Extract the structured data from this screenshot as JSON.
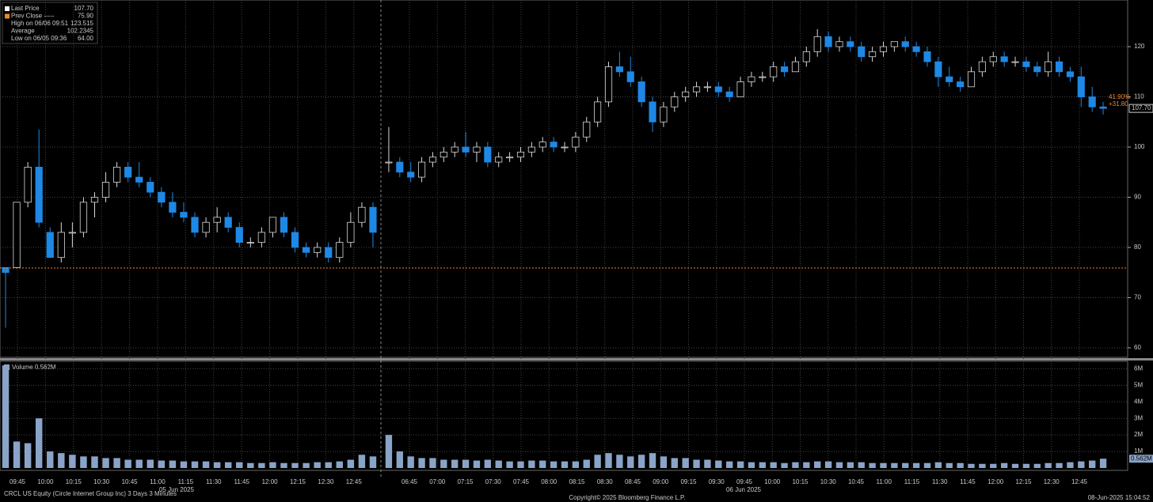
{
  "chart_data": {
    "type": "candlestick",
    "legend": [
      {
        "label": "Last Price",
        "value": "107.70"
      },
      {
        "label": "Prev Close -----",
        "value": "75.90"
      },
      {
        "label": "High on 06/06 09:51",
        "value": "123.515"
      },
      {
        "label": "Average",
        "value": "102.2345"
      },
      {
        "label": "Low on 06/05 09:36",
        "value": "64.00"
      }
    ],
    "prev_close": 75.9,
    "right_labels": {
      "pct": "41.90%",
      "change": "+31.80",
      "last": "107.70"
    },
    "ylim": [
      58.1,
      129.3
    ],
    "yticks": [
      60,
      70,
      80,
      90,
      100,
      110,
      120
    ],
    "volume": {
      "legend": "Volume 0.562M",
      "last_label": "0.562M",
      "ylim": [
        0,
        6.4
      ],
      "yticks": [
        {
          "value": 1,
          "label": "1M"
        },
        {
          "value": 2,
          "label": "2M"
        },
        {
          "value": 3,
          "label": "3M"
        },
        {
          "value": 4,
          "label": "4M"
        },
        {
          "value": 5,
          "label": "5M"
        },
        {
          "value": 6,
          "label": "6M"
        }
      ]
    },
    "days": [
      {
        "label": "05 Jun 2025",
        "xticks": [
          "09:45",
          "10:00",
          "10:15",
          "10:30",
          "10:45",
          "11:00",
          "11:15",
          "11:30",
          "11:45",
          "12:00",
          "12:15",
          "12:30",
          "12:45"
        ],
        "candles": [
          [
            76,
            76,
            64,
            75
          ],
          [
            76,
            89,
            76,
            89
          ],
          [
            89,
            97,
            88,
            96
          ],
          [
            96,
            103.5,
            84,
            85
          ],
          [
            83,
            84,
            78,
            78
          ],
          [
            78,
            85,
            77,
            83
          ],
          [
            83,
            85,
            80,
            83
          ],
          [
            83,
            90,
            82,
            89
          ],
          [
            89,
            91,
            86,
            90
          ],
          [
            90,
            95,
            89,
            93
          ],
          [
            93,
            97,
            92,
            96
          ],
          [
            96,
            97,
            93,
            94
          ],
          [
            94,
            97,
            92,
            93
          ],
          [
            93,
            94,
            90,
            91
          ],
          [
            91,
            92,
            88,
            89
          ],
          [
            89,
            91,
            86,
            87
          ],
          [
            87,
            89,
            85,
            86
          ],
          [
            86,
            87,
            82,
            83
          ],
          [
            83,
            86,
            82,
            85
          ],
          [
            85,
            88,
            83,
            86
          ],
          [
            86,
            87,
            83,
            84
          ],
          [
            84,
            85,
            80,
            81
          ],
          [
            81,
            82,
            80,
            81
          ],
          [
            81,
            84,
            80,
            83
          ],
          [
            83,
            86,
            82,
            86
          ],
          [
            86,
            87,
            82,
            83
          ],
          [
            83,
            84,
            79,
            80
          ],
          [
            80,
            81,
            78,
            79
          ],
          [
            79,
            81,
            78,
            80
          ],
          [
            80,
            81,
            77,
            78
          ],
          [
            78,
            82,
            77,
            81
          ],
          [
            81,
            87,
            80,
            85
          ],
          [
            85,
            89,
            84,
            88
          ],
          [
            88,
            89,
            80,
            83
          ]
        ],
        "volume": [
          6.2,
          1.6,
          1.5,
          3.0,
          1.0,
          0.9,
          0.8,
          0.7,
          0.7,
          0.6,
          0.6,
          0.5,
          0.5,
          0.5,
          0.45,
          0.45,
          0.4,
          0.4,
          0.4,
          0.35,
          0.35,
          0.35,
          0.3,
          0.3,
          0.35,
          0.3,
          0.3,
          0.3,
          0.35,
          0.35,
          0.4,
          0.5,
          0.8,
          0.7
        ]
      },
      {
        "label": "06 Jun 2025",
        "xticks": [
          "06:45",
          "07:00",
          "07:15",
          "07:30",
          "07:45",
          "08:00",
          "08:15",
          "08:30",
          "08:45",
          "09:00",
          "09:15",
          "09:30",
          "09:45",
          "10:00",
          "10:15",
          "10:30",
          "10:45",
          "11:00",
          "11:15",
          "11:30",
          "11:45",
          "12:00",
          "12:15",
          "12:30",
          "12:45"
        ],
        "candles": [
          [
            97,
            104,
            95,
            97
          ],
          [
            97,
            98,
            94,
            95
          ],
          [
            95,
            97,
            93,
            94
          ],
          [
            94,
            98,
            93,
            97
          ],
          [
            97,
            99,
            96,
            98
          ],
          [
            98,
            100,
            97,
            99
          ],
          [
            99,
            101,
            98,
            100
          ],
          [
            100,
            103,
            98,
            99
          ],
          [
            99,
            101,
            97,
            100
          ],
          [
            100,
            101,
            96,
            97
          ],
          [
            97,
            99,
            96,
            98
          ],
          [
            98,
            99,
            97,
            98
          ],
          [
            98,
            100,
            97,
            99
          ],
          [
            99,
            101,
            98,
            100
          ],
          [
            100,
            102,
            99,
            101
          ],
          [
            101,
            102,
            99,
            100
          ],
          [
            100,
            101,
            99,
            100
          ],
          [
            100,
            103,
            99,
            102
          ],
          [
            102,
            106,
            101,
            105
          ],
          [
            105,
            110,
            104,
            109
          ],
          [
            109,
            117,
            108,
            116
          ],
          [
            116,
            119,
            114,
            115
          ],
          [
            115,
            118,
            112,
            113
          ],
          [
            113,
            114,
            108,
            109
          ],
          [
            109,
            110,
            103,
            105
          ],
          [
            105,
            109,
            104,
            108
          ],
          [
            108,
            111,
            107,
            110
          ],
          [
            110,
            112,
            109,
            111
          ],
          [
            111,
            113,
            110,
            112
          ],
          [
            112,
            113,
            111,
            112
          ],
          [
            112,
            113,
            110,
            111
          ],
          [
            111,
            112,
            109,
            110
          ],
          [
            110,
            114,
            110,
            113
          ],
          [
            113,
            115,
            112,
            114
          ],
          [
            114,
            115,
            113,
            114
          ],
          [
            114,
            117,
            113,
            116
          ],
          [
            116,
            117,
            114,
            115
          ],
          [
            115,
            118,
            115,
            117
          ],
          [
            117,
            120,
            116,
            119
          ],
          [
            119,
            123.5,
            118,
            122
          ],
          [
            122,
            123,
            119,
            120
          ],
          [
            120,
            122,
            119,
            121
          ],
          [
            121,
            122,
            119,
            120
          ],
          [
            120,
            121,
            117,
            118
          ],
          [
            118,
            120,
            117,
            119
          ],
          [
            119,
            121,
            118,
            120
          ],
          [
            120,
            121,
            119,
            121
          ],
          [
            121,
            122,
            119,
            120
          ],
          [
            120,
            121,
            118,
            119
          ],
          [
            119,
            120,
            116,
            117
          ],
          [
            117,
            118,
            112,
            114
          ],
          [
            114,
            116,
            112,
            113
          ],
          [
            113,
            114,
            111,
            112
          ],
          [
            112,
            116,
            112,
            115
          ],
          [
            115,
            118,
            114,
            117
          ],
          [
            117,
            119,
            116,
            118
          ],
          [
            118,
            119,
            116,
            117
          ],
          [
            117,
            118,
            116,
            117
          ],
          [
            117,
            118,
            115,
            116
          ],
          [
            116,
            117,
            114,
            115
          ],
          [
            115,
            119,
            114,
            117
          ],
          [
            117,
            118,
            114,
            115
          ],
          [
            115,
            116,
            113,
            114
          ],
          [
            114,
            116,
            108,
            110
          ],
          [
            110,
            112,
            107,
            108
          ],
          [
            108,
            109,
            106.5,
            107.7
          ]
        ],
        "volume": [
          2.0,
          1.0,
          0.7,
          0.6,
          0.6,
          0.5,
          0.5,
          0.5,
          0.45,
          0.5,
          0.45,
          0.4,
          0.4,
          0.45,
          0.45,
          0.4,
          0.4,
          0.4,
          0.5,
          0.8,
          0.9,
          0.8,
          0.7,
          0.8,
          0.9,
          0.7,
          0.6,
          0.6,
          0.5,
          0.5,
          0.45,
          0.4,
          0.4,
          0.35,
          0.35,
          0.35,
          0.3,
          0.35,
          0.35,
          0.4,
          0.4,
          0.35,
          0.35,
          0.35,
          0.3,
          0.3,
          0.3,
          0.3,
          0.3,
          0.3,
          0.35,
          0.3,
          0.3,
          0.25,
          0.25,
          0.25,
          0.3,
          0.25,
          0.25,
          0.25,
          0.3,
          0.3,
          0.35,
          0.4,
          0.45,
          0.562
        ]
      }
    ],
    "footer": {
      "left": "CRCL US Equity (Circle Internet Group Inc) 3 Days 3 Minutes",
      "center": "Copyright© 2025 Bloomberg Finance L.P.",
      "right": "08-Jun-2025 15:04:52"
    }
  }
}
